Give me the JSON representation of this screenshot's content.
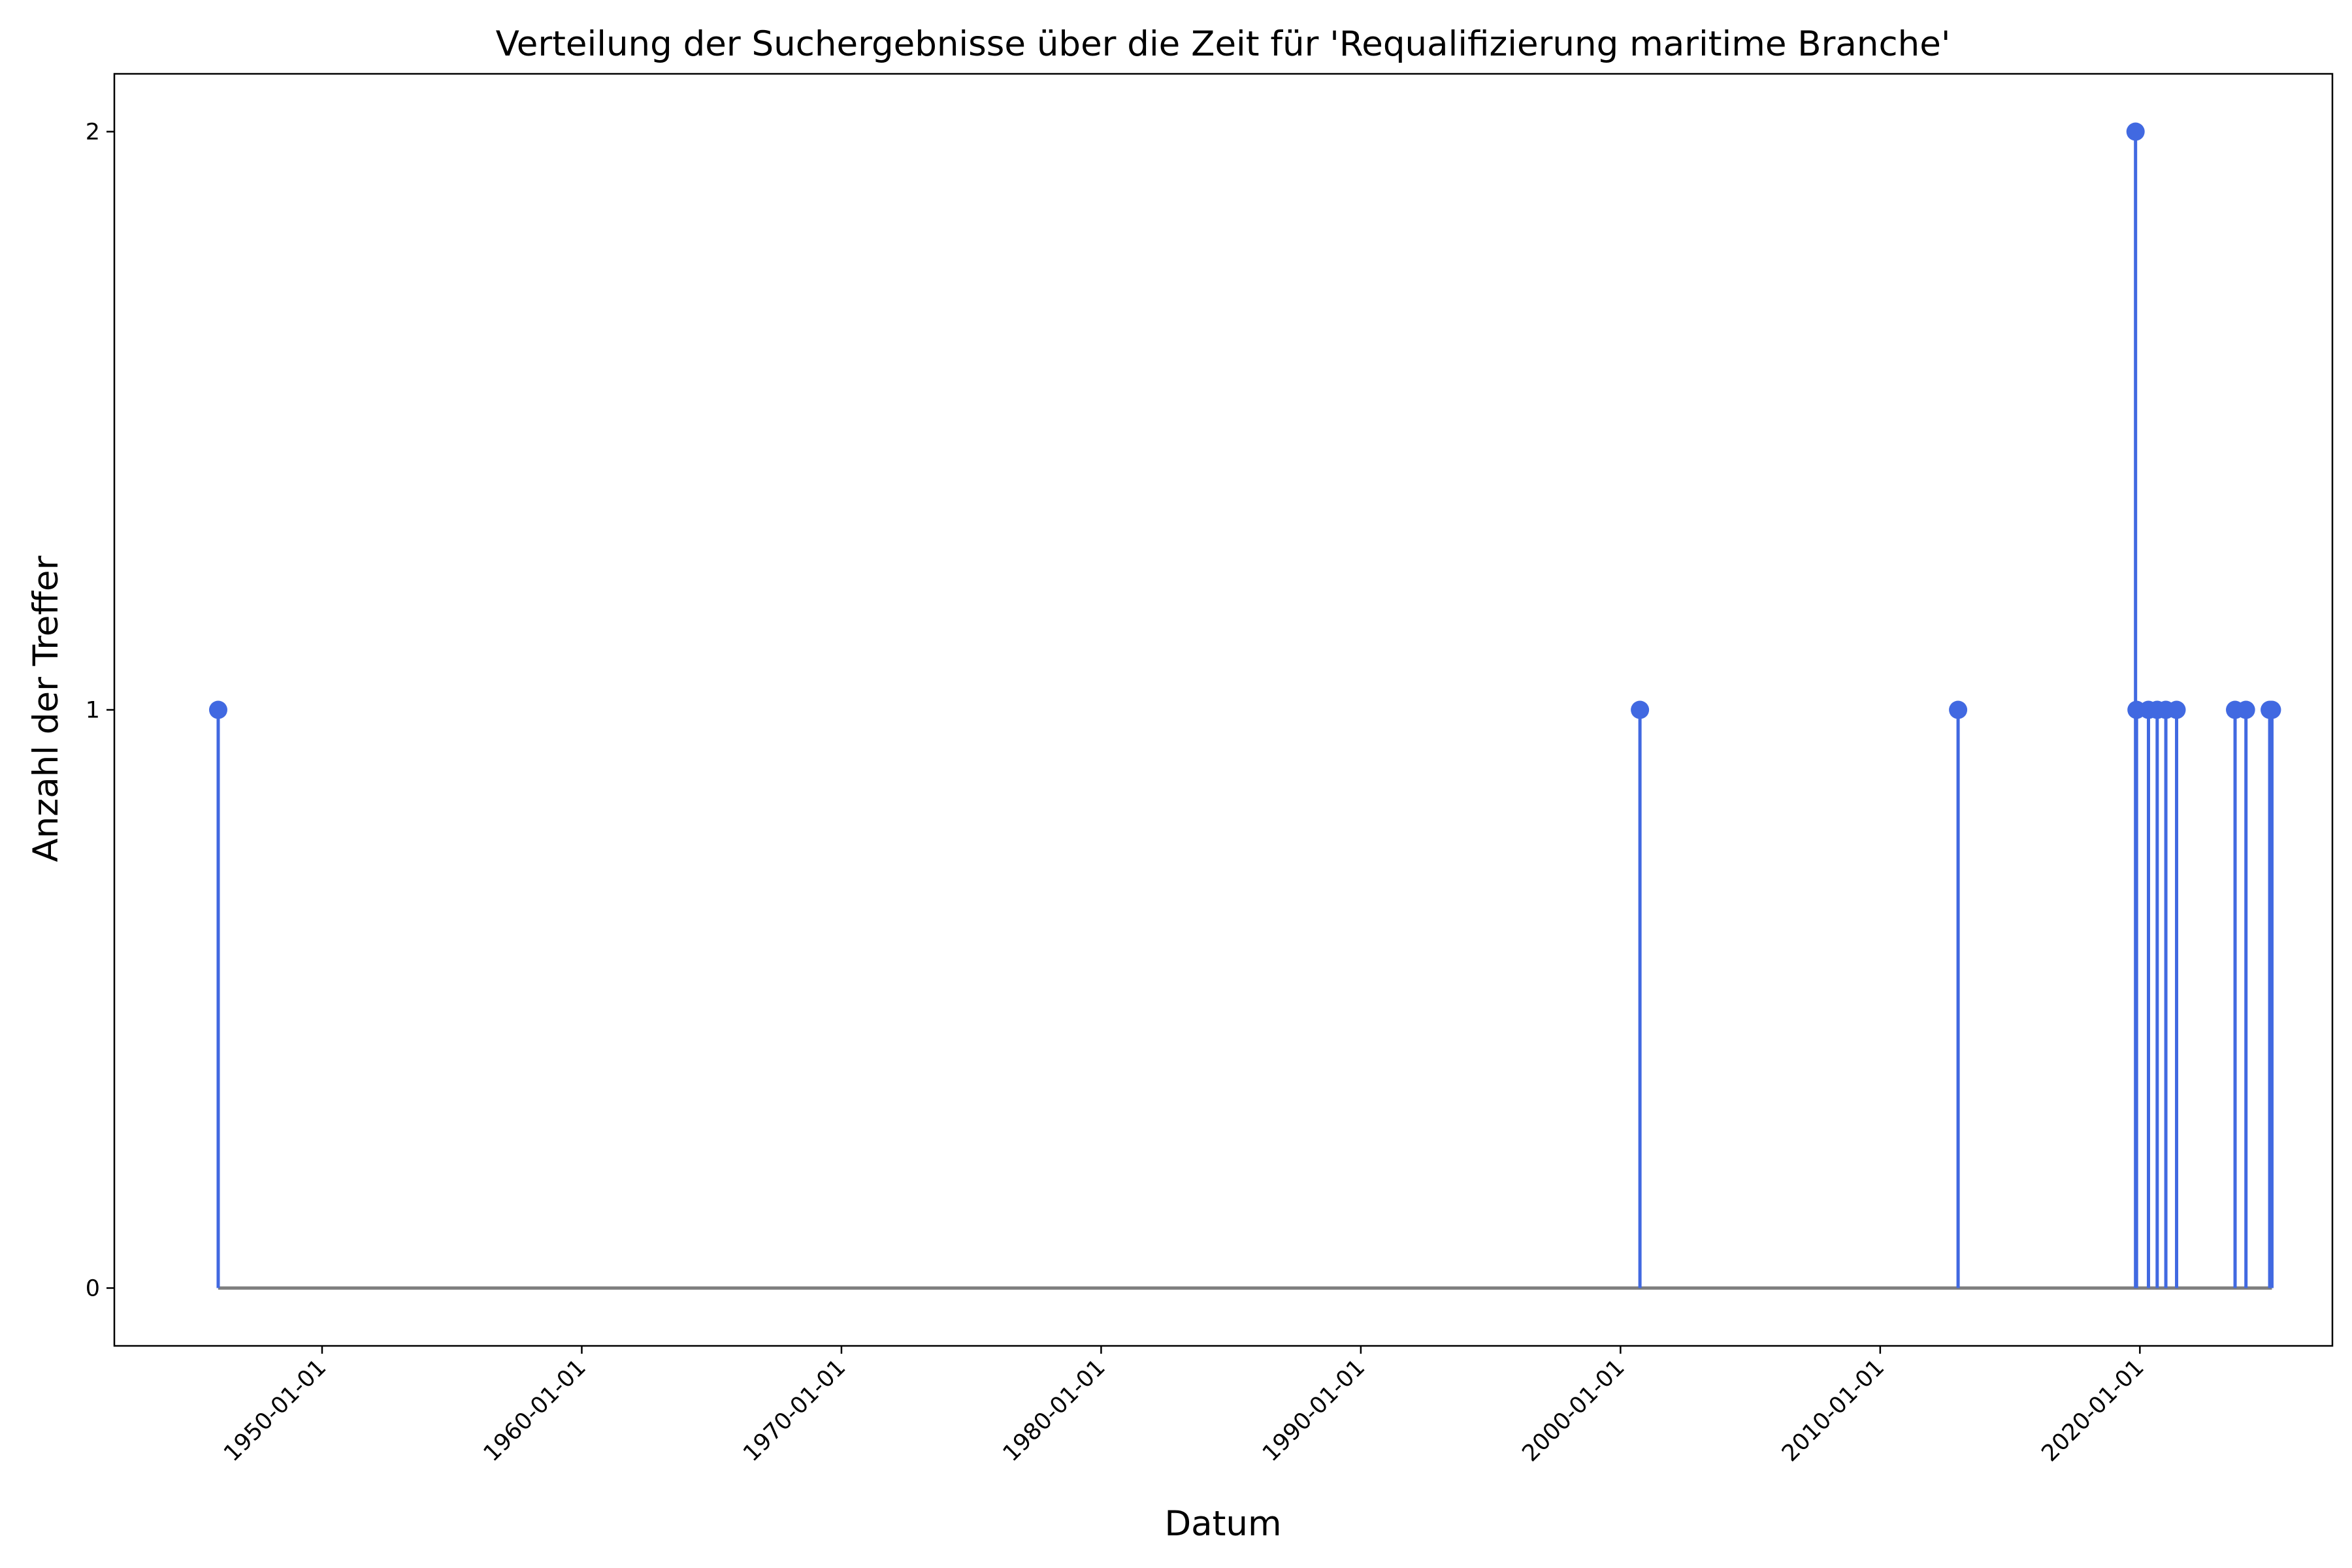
{
  "chart_data": {
    "type": "stem",
    "title": "Verteilung der Suchergebnisse über die Zeit für 'Requalifizierung maritime Branche'",
    "xlabel": "Datum",
    "ylabel": "Anzahl der Treffer",
    "x_ticks": [
      "1950-01-01",
      "1960-01-01",
      "1970-01-01",
      "1980-01-01",
      "1990-01-01",
      "2000-01-01",
      "2010-01-01",
      "2020-01-01"
    ],
    "y_ticks": [
      "0",
      "1",
      "2"
    ],
    "ylim": [
      -0.1,
      2.1
    ],
    "xlim": [
      "1942-01-01",
      "2027-06-01"
    ],
    "grid": false,
    "points": [
      {
        "x": "1946-01-01",
        "y": 1
      },
      {
        "x": "2000-10-01",
        "y": 1
      },
      {
        "x": "2013-01-01",
        "y": 1
      },
      {
        "x": "2019-11-01",
        "y": 2
      },
      {
        "x": "2019-11-15",
        "y": 1
      },
      {
        "x": "2020-05-01",
        "y": 1
      },
      {
        "x": "2020-09-01",
        "y": 1
      },
      {
        "x": "2021-01-01",
        "y": 1
      },
      {
        "x": "2021-06-01",
        "y": 1
      },
      {
        "x": "2023-09-01",
        "y": 1
      },
      {
        "x": "2024-02-01",
        "y": 1
      },
      {
        "x": "2025-01-01",
        "y": 1
      },
      {
        "x": "2025-02-01",
        "y": 1
      }
    ],
    "colors": {
      "stem": "#4169e1",
      "baseline": "#808080"
    }
  }
}
